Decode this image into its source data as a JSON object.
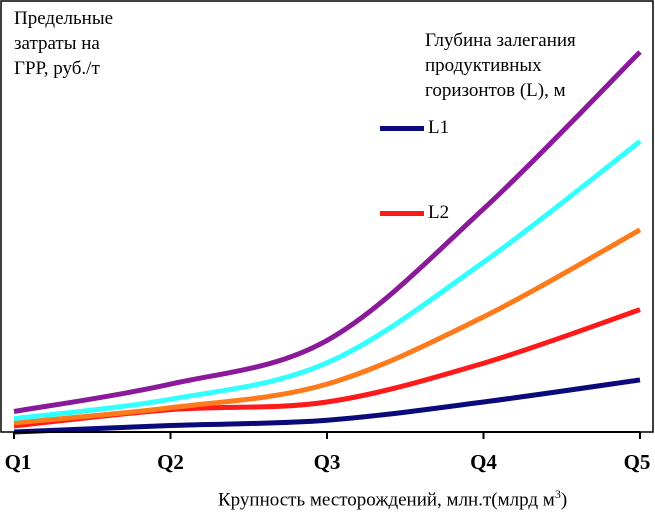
{
  "chart_data": {
    "type": "line",
    "title": "",
    "ylabel": "Предельные\nзатраты на\nГРР, руб./т",
    "xlabel": "Крупность месторождений, млн.т(млрд м",
    "xlabel_sup": "3",
    "xlabel_close": ")",
    "legend_title": "Глубина залегания\nпродуктивных\nгоризонтов (L), м",
    "legend_position": "top-right",
    "categories": [
      "Q1",
      "Q2",
      "Q3",
      "Q4",
      "Q5"
    ],
    "ylim": [
      0,
      100
    ],
    "grid": false,
    "series": [
      {
        "name": "L1",
        "color": "#0a0a7a",
        "values": [
          0,
          1.7,
          3.1,
          7.9,
          13.7
        ]
      },
      {
        "name": "L2",
        "color": "#ff1a1a",
        "values": [
          1.6,
          5.9,
          7.9,
          18.1,
          32.2
        ]
      },
      {
        "name": "",
        "color": "#ff7a1a",
        "values": [
          2.4,
          6.4,
          12.6,
          30.3,
          53.2
        ]
      },
      {
        "name": "",
        "color": "#33ffff",
        "values": [
          3.5,
          8.6,
          18.2,
          44.7,
          76.5
        ]
      },
      {
        "name": "",
        "color": "#8a1a9a",
        "values": [
          5.4,
          12.6,
          24.1,
          58.7,
          100
        ]
      }
    ]
  }
}
